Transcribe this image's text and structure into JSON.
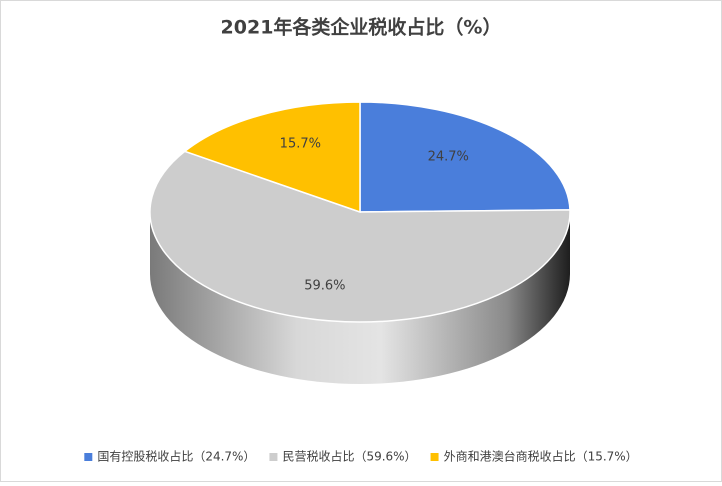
{
  "chart_data": {
    "type": "pie",
    "title": "2021年各类企业税收占比（%）",
    "categories": [
      "国有控股税收占比（24.7%）",
      "民营税收占比（59.6%）",
      "外商和港澳台商税收占比（15.7%）"
    ],
    "values": [
      24.7,
      59.6,
      15.7
    ],
    "value_labels": [
      "24.7%",
      "59.6%",
      "15.7%"
    ],
    "colors": [
      "#4a7edb",
      "#cdcdcd",
      "#ffc000"
    ],
    "legend": "bottom"
  }
}
